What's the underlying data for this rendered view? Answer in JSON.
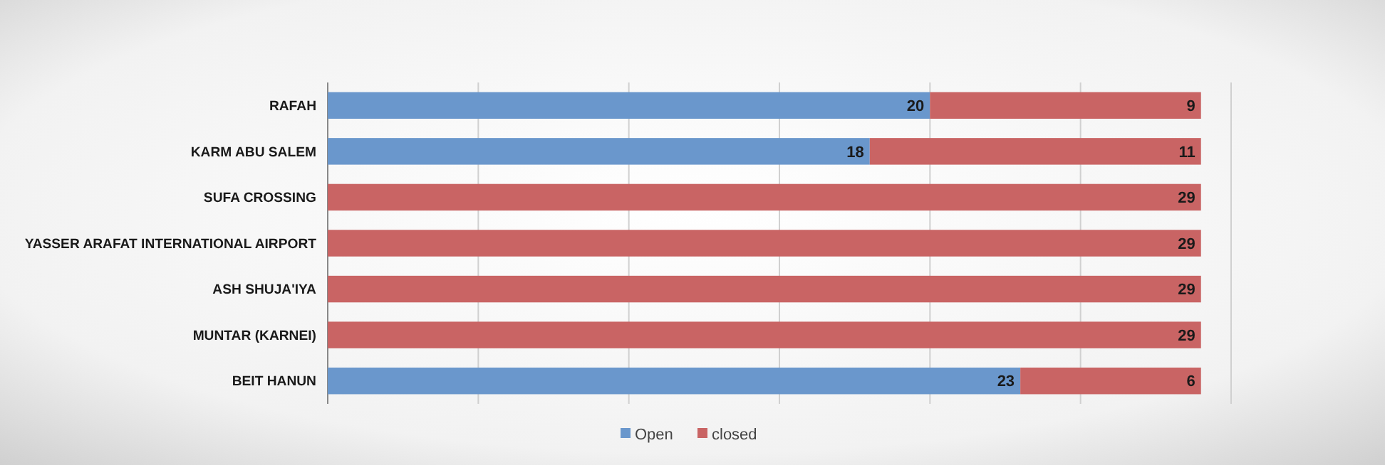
{
  "chart_data": {
    "type": "bar",
    "orientation": "horizontal",
    "stacked": true,
    "categories": [
      "RAFAH",
      "KARM ABU SALEM",
      "SUFA CROSSING",
      "YASSER ARAFAT INTERNATIONAL AIRPORT",
      "ASH SHUJA'IYA",
      "MUNTAR (KARNEI)",
      "BEIT HANUN"
    ],
    "series": [
      {
        "name": "Open",
        "color": "#6a97cc",
        "values": [
          20,
          18,
          null,
          null,
          null,
          null,
          23
        ]
      },
      {
        "name": "closed",
        "color": "#c96464",
        "values": [
          9,
          11,
          29,
          29,
          29,
          29,
          6
        ]
      }
    ],
    "xlim": [
      0,
      30
    ],
    "xticks": [
      {
        "value": 0,
        "label": null
      },
      {
        "value": 5,
        "label": null
      },
      {
        "value": 10,
        "label": null
      },
      {
        "value": 15,
        "label": null
      },
      {
        "value": 20,
        "label": null
      },
      {
        "value": 25,
        "label": null
      },
      {
        "value": 30,
        "label": null
      }
    ],
    "grid": "x",
    "legend": "bottom",
    "tick_labels": "y",
    "data_labels": true
  }
}
